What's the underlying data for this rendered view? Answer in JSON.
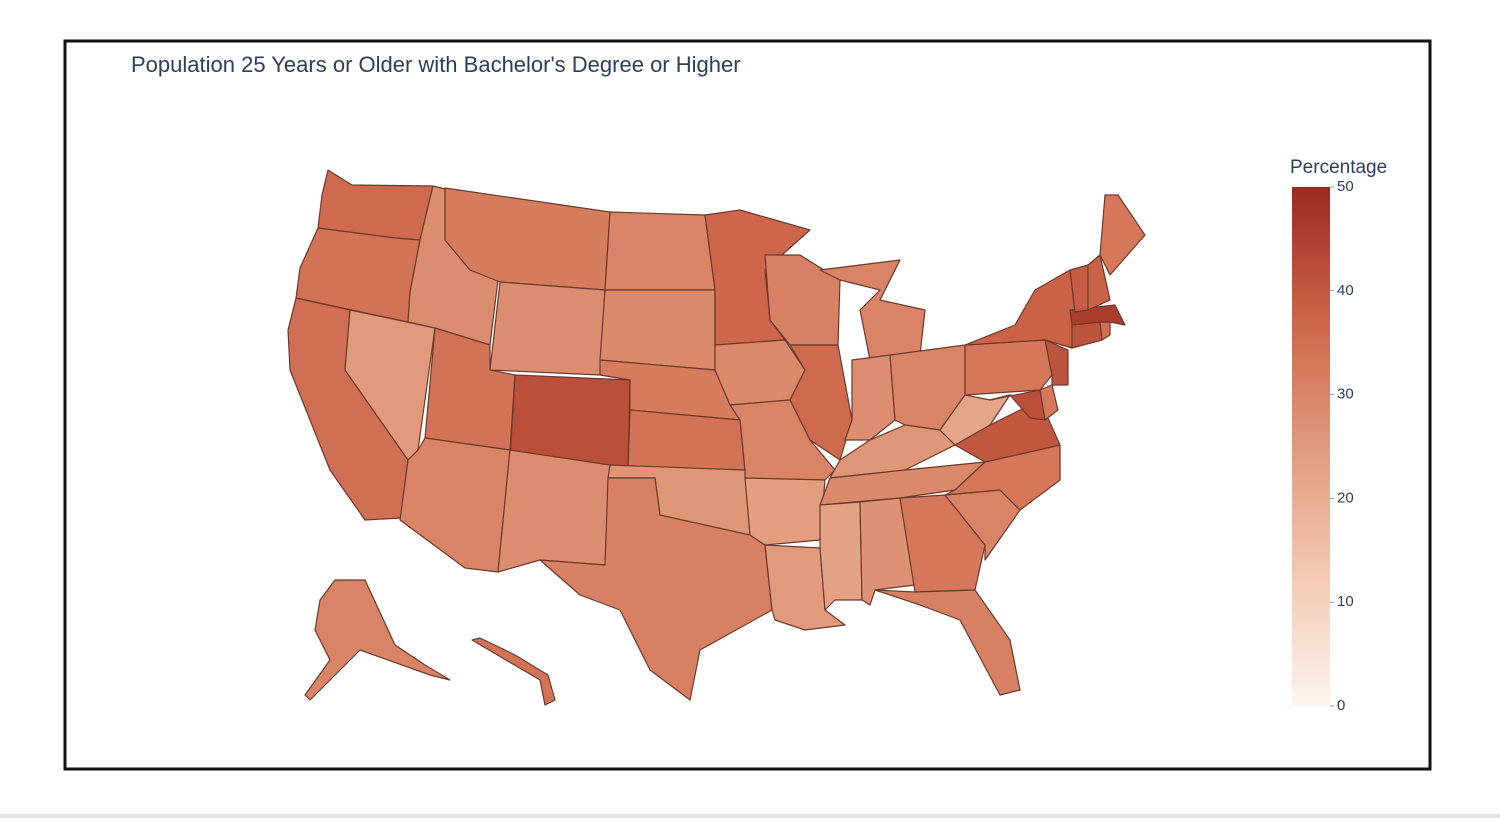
{
  "chart_data": {
    "type": "choropleth",
    "title": "Population 25 Years or Older with Bachelor's Degree or Higher",
    "colorbar_title": "Percentage",
    "values": [
      36,
      34,
      35,
      25,
      28,
      32,
      28,
      34,
      42,
      30,
      28,
      30,
      29,
      32,
      34,
      26,
      31,
      37,
      29,
      30,
      24,
      25,
      31,
      36,
      30,
      28,
      30,
      26,
      29,
      23,
      27,
      33,
      31,
      30,
      33,
      40,
      22,
      33,
      38,
      42,
      33,
      41,
      41,
      35,
      46,
      39,
      38,
      33,
      30,
      34
    ],
    "colorscale": [
      "#fdf3ee",
      "#f3c9b2",
      "#e19a7b",
      "#cc6449",
      "#9b2a1e"
    ],
    "clim": [
      0,
      50
    ],
    "cticks": [
      0,
      10,
      20,
      30,
      40,
      50
    ]
  }
}
